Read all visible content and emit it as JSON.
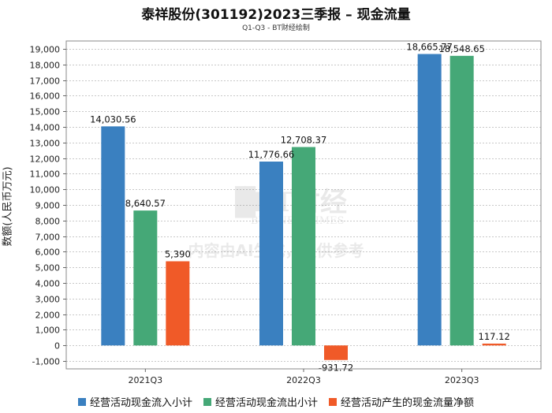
{
  "title": "泰祥股份(301192)2023三季报 – 现金流量",
  "subtitle": "Q1-Q3 - BT财经绘制",
  "watermark": {
    "brand": "BT财经",
    "brand_en": "BUSINESSTIMES",
    "note": "内容由AI生成，仅供参考"
  },
  "chart_data": {
    "type": "bar",
    "ylabel": "数额(人民币万元)",
    "ylim": [
      -1500,
      19500
    ],
    "yticks": [
      -1000,
      0,
      1000,
      2000,
      3000,
      4000,
      5000,
      6000,
      7000,
      8000,
      9000,
      10000,
      11000,
      12000,
      13000,
      14000,
      15000,
      16000,
      17000,
      18000,
      19000
    ],
    "ytick_labels": [
      "-1,000",
      "0",
      "1,000",
      "2,000",
      "3,000",
      "4,000",
      "5,000",
      "6,000",
      "7,000",
      "8,000",
      "9,000",
      "10,000",
      "11,000",
      "12,000",
      "13,000",
      "14,000",
      "15,000",
      "16,000",
      "17,000",
      "18,000",
      "19,000"
    ],
    "categories": [
      "2021Q3",
      "2022Q3",
      "2023Q3"
    ],
    "series": [
      {
        "name": "经营活动现金流入小计",
        "color": "#3a80c0",
        "values": [
          14030.56,
          11776.66,
          18665.77
        ],
        "labels": [
          "14,030.56",
          "11,776.66",
          "18,665.77"
        ]
      },
      {
        "name": "经营活动现金流出小计",
        "color": "#45a877",
        "values": [
          8640.57,
          12708.37,
          18548.65
        ],
        "labels": [
          "8,640.57",
          "12,708.37",
          "18,548.65"
        ]
      },
      {
        "name": "经营活动产生的现金流量净额",
        "color": "#f05a28",
        "values": [
          5390,
          -931.72,
          117.12
        ],
        "labels": [
          "5,390",
          "-931.72",
          "117.12"
        ]
      }
    ],
    "grid": true,
    "legend_position": "bottom"
  }
}
